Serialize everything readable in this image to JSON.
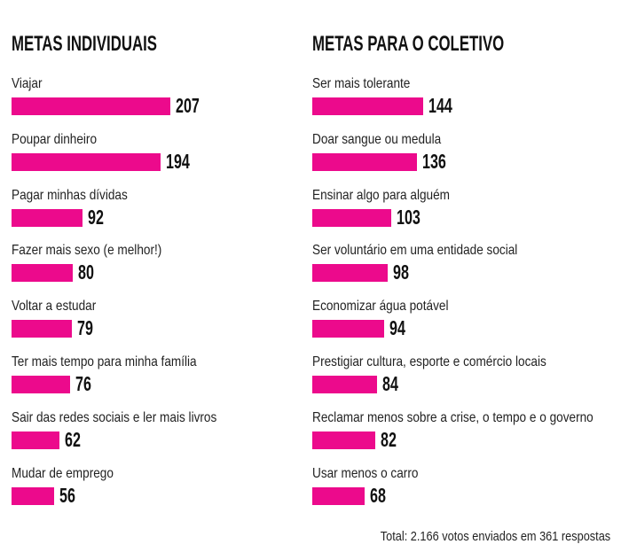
{
  "chart_data": [
    {
      "type": "bar",
      "orientation": "horizontal",
      "title": "METAS INDIVIDUAIS",
      "bar_color": "#ec0a8c",
      "categories": [
        "Viajar",
        "Poupar dinheiro",
        "Pagar minhas dívidas",
        "Fazer mais sexo (e melhor!)",
        "Voltar a estudar",
        "Ter mais tempo para minha família",
        "Sair das redes sociais e ler mais livros",
        "Mudar de emprego"
      ],
      "values": [
        207,
        194,
        92,
        80,
        79,
        76,
        62,
        56
      ]
    },
    {
      "type": "bar",
      "orientation": "horizontal",
      "title": "METAS PARA O COLETIVO",
      "bar_color": "#ec0a8c",
      "categories": [
        "Ser mais tolerante",
        "Doar sangue ou medula",
        "Ensinar algo para alguém",
        "Ser voluntário em uma entidade social",
        "Economizar água potável",
        "Prestigiar cultura, esporte e comércio locais",
        "Reclamar menos sobre a crise, o tempo e o governo",
        "Usar menos o carro"
      ],
      "values": [
        144,
        136,
        103,
        98,
        94,
        84,
        82,
        68
      ]
    }
  ],
  "footer": {
    "total": "Total: 2.166 votos enviados em 361 respostas"
  }
}
